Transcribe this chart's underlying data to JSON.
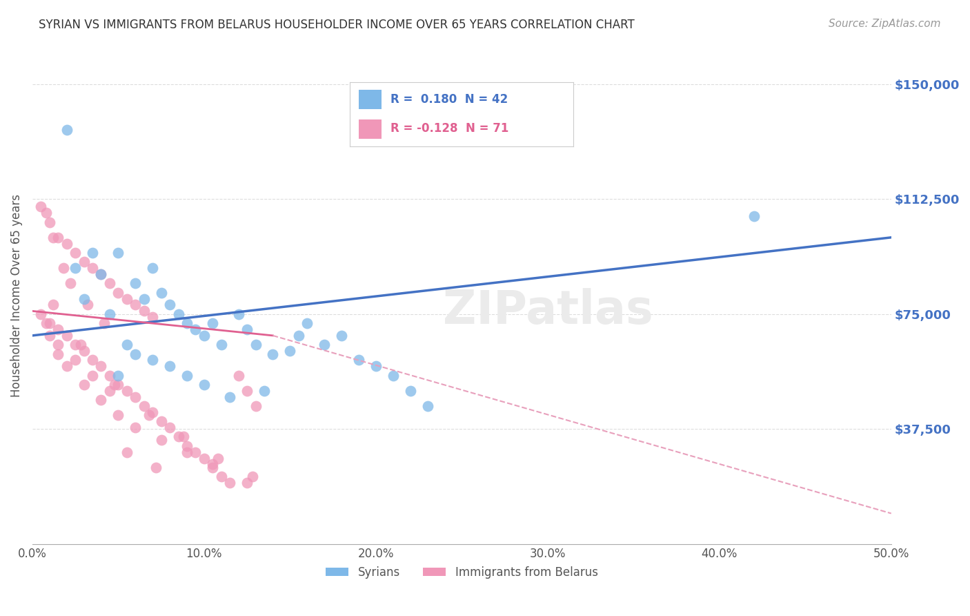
{
  "title": "SYRIAN VS IMMIGRANTS FROM BELARUS HOUSEHOLDER INCOME OVER 65 YEARS CORRELATION CHART",
  "source": "Source: ZipAtlas.com",
  "xlabel_ticks": [
    "0.0%",
    "10.0%",
    "20.0%",
    "30.0%",
    "40.0%",
    "50.0%"
  ],
  "xlabel_vals": [
    0,
    10,
    20,
    30,
    40,
    50
  ],
  "ylabel_ticks": [
    "$37,500",
    "$75,000",
    "$112,500",
    "$150,000"
  ],
  "ylabel_vals": [
    37500,
    75000,
    112500,
    150000
  ],
  "xlim": [
    0,
    50
  ],
  "ylim": [
    0,
    162000
  ],
  "ylabel": "Householder Income Over 65 years",
  "blue_scatter_x": [
    2.0,
    2.5,
    3.5,
    4.0,
    5.0,
    6.0,
    6.5,
    7.0,
    7.5,
    8.0,
    8.5,
    9.0,
    9.5,
    10.0,
    10.5,
    11.0,
    12.0,
    12.5,
    13.0,
    14.0,
    15.0,
    15.5,
    16.0,
    17.0,
    18.0,
    19.0,
    20.0,
    21.0,
    22.0,
    23.0,
    3.0,
    4.5,
    5.5,
    6.0,
    7.0,
    8.0,
    9.0,
    10.0,
    11.5,
    13.5,
    42.0,
    5.0
  ],
  "blue_scatter_y": [
    135000,
    90000,
    95000,
    88000,
    95000,
    85000,
    80000,
    90000,
    82000,
    78000,
    75000,
    72000,
    70000,
    68000,
    72000,
    65000,
    75000,
    70000,
    65000,
    62000,
    63000,
    68000,
    72000,
    65000,
    68000,
    60000,
    58000,
    55000,
    50000,
    45000,
    80000,
    75000,
    65000,
    62000,
    60000,
    58000,
    55000,
    52000,
    48000,
    50000,
    107000,
    55000
  ],
  "pink_scatter_x": [
    0.5,
    1.0,
    1.5,
    2.0,
    2.5,
    3.0,
    3.5,
    4.0,
    4.5,
    5.0,
    5.5,
    6.0,
    6.5,
    7.0,
    0.8,
    1.2,
    1.8,
    2.2,
    3.2,
    4.2,
    0.5,
    1.0,
    1.5,
    2.0,
    2.5,
    3.0,
    3.5,
    4.0,
    4.5,
    5.0,
    5.5,
    6.0,
    6.5,
    7.0,
    7.5,
    8.0,
    8.5,
    9.0,
    9.5,
    10.0,
    10.5,
    11.0,
    11.5,
    12.0,
    12.5,
    13.0,
    1.5,
    2.5,
    3.5,
    4.5,
    0.8,
    1.0,
    1.5,
    2.0,
    3.0,
    4.0,
    5.0,
    6.0,
    7.5,
    9.0,
    10.5,
    12.5,
    1.2,
    2.8,
    4.8,
    6.8,
    8.8,
    10.8,
    12.8,
    5.5,
    7.2
  ],
  "pink_scatter_y": [
    110000,
    105000,
    100000,
    98000,
    95000,
    92000,
    90000,
    88000,
    85000,
    82000,
    80000,
    78000,
    76000,
    74000,
    108000,
    100000,
    90000,
    85000,
    78000,
    72000,
    75000,
    72000,
    70000,
    68000,
    65000,
    63000,
    60000,
    58000,
    55000,
    52000,
    50000,
    48000,
    45000,
    43000,
    40000,
    38000,
    35000,
    32000,
    30000,
    28000,
    25000,
    22000,
    20000,
    55000,
    50000,
    45000,
    65000,
    60000,
    55000,
    50000,
    72000,
    68000,
    62000,
    58000,
    52000,
    47000,
    42000,
    38000,
    34000,
    30000,
    26000,
    20000,
    78000,
    65000,
    52000,
    42000,
    35000,
    28000,
    22000,
    30000,
    25000
  ],
  "blue_line_x0": 0,
  "blue_line_x1": 50,
  "blue_line_y0": 68000,
  "blue_line_y1": 100000,
  "pink_solid_x0": 0,
  "pink_solid_x1": 14,
  "pink_solid_y0": 76000,
  "pink_solid_y1": 68000,
  "pink_dash_x0": 14,
  "pink_dash_x1": 50,
  "pink_dash_y0": 68000,
  "pink_dash_y1": 10000,
  "watermark": "ZIPatlas",
  "bg_color": "#ffffff",
  "grid_color": "#dddddd",
  "title_color": "#333333",
  "axis_label_color": "#555555",
  "right_axis_color": "#4472c4",
  "blue_line_color": "#4472c4",
  "pink_line_color": "#e06090",
  "pink_dash_color": "#e8a0bc",
  "blue_dot_color": "#7eb8e8",
  "pink_dot_color": "#f097b8",
  "legend_blue_text": "R =  0.180  N = 42",
  "legend_pink_text": "R = -0.128  N = 71",
  "legend_syrians": "Syrians",
  "legend_belarus": "Immigrants from Belarus"
}
